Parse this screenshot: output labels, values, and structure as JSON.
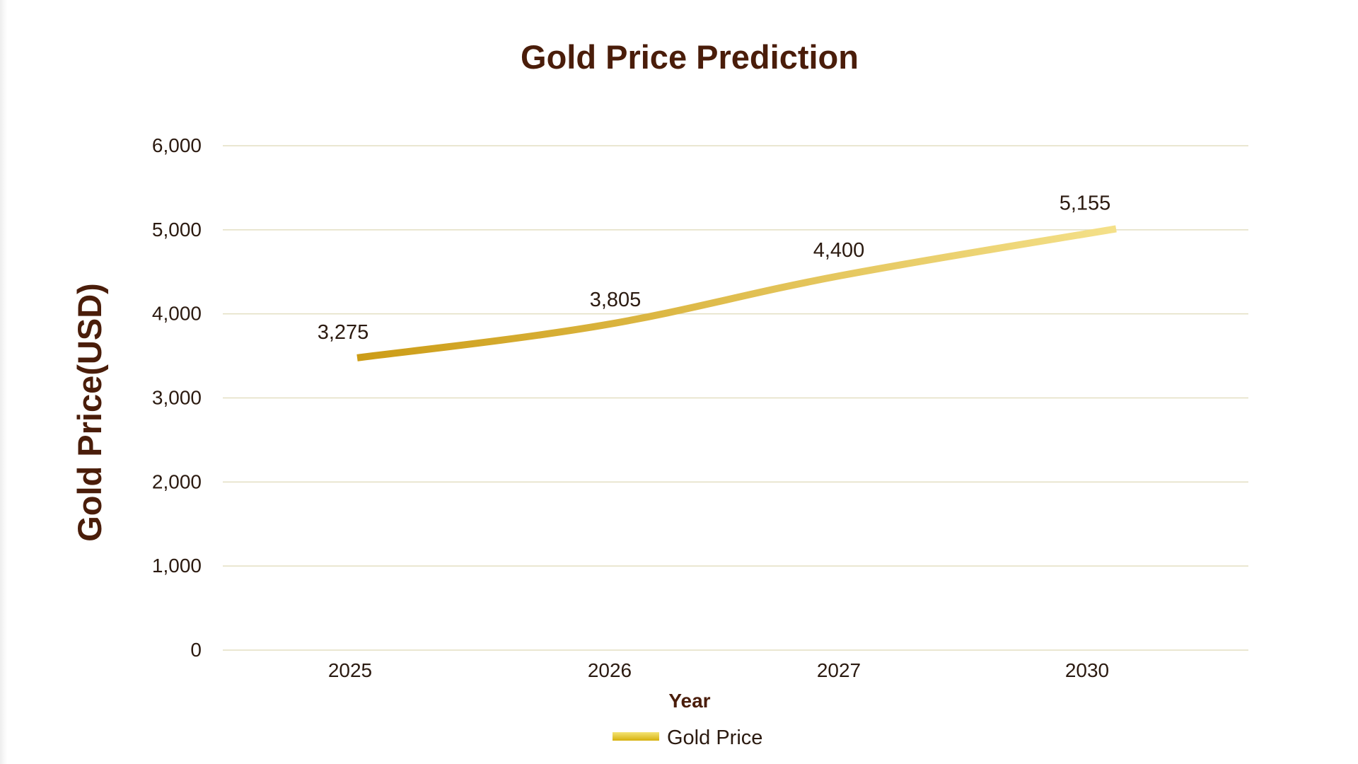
{
  "chart_data": {
    "type": "line",
    "title": "Gold Price Prediction",
    "xlabel": "Year",
    "ylabel": "Gold Price(USD)",
    "categories": [
      "2025",
      "2026",
      "2027",
      "2030"
    ],
    "ylim": [
      0,
      6000
    ],
    "yticks": [
      0,
      1000,
      2000,
      3000,
      4000,
      5000,
      6000
    ],
    "ytick_labels": [
      "0",
      "1,000",
      "2,000",
      "3,000",
      "4,000",
      "5,000",
      "6,000"
    ],
    "series": [
      {
        "name": "Gold Price",
        "values": [
          3275,
          3805,
          4400,
          5155
        ],
        "data_labels": [
          "3,275",
          "3,805",
          "4,400",
          "5,155"
        ]
      }
    ],
    "grid": true,
    "legend": "bottom-center",
    "colors": {
      "line_start": "#cc9c16",
      "line_end": "#f4e089",
      "text_dark": "#4a1d0a",
      "grid": "#e3dfc2"
    }
  }
}
